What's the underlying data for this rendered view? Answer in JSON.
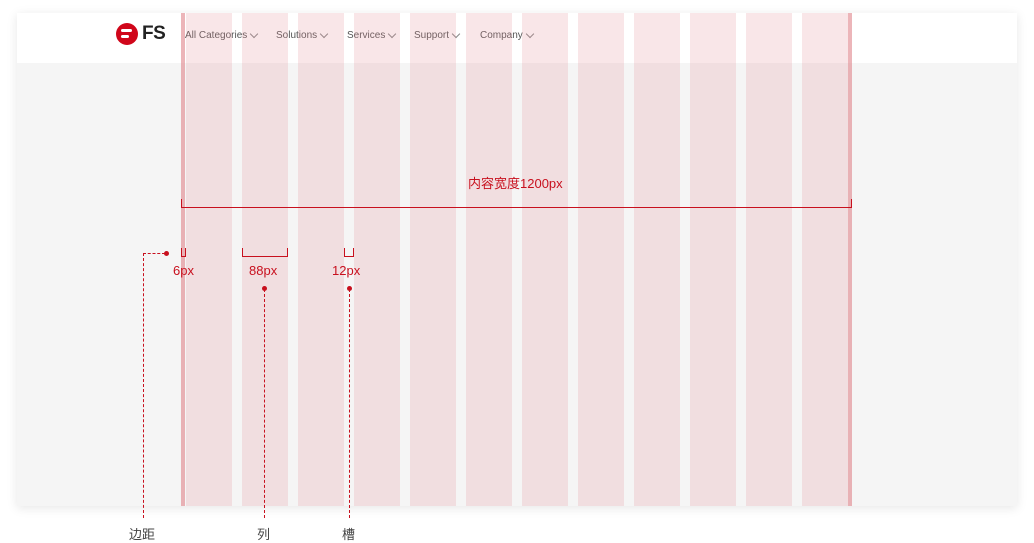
{
  "header": {
    "logo_text": "FS",
    "nav": [
      {
        "label": "All Categories"
      },
      {
        "label": "Solutions"
      },
      {
        "label": "Services"
      },
      {
        "label": "Support"
      },
      {
        "label": "Company"
      }
    ]
  },
  "annotations": {
    "content_width": "内容宽度1200px",
    "margin_value": "6px",
    "column_value": "88px",
    "gutter_value": "12px"
  },
  "legend": {
    "margin": "边距",
    "column": "列",
    "gutter": "槽"
  },
  "colors": {
    "brand": "#d0061a",
    "annotation": "#c8101e",
    "column_overlay": "#e58c96"
  },
  "grid": {
    "columns": 12
  }
}
